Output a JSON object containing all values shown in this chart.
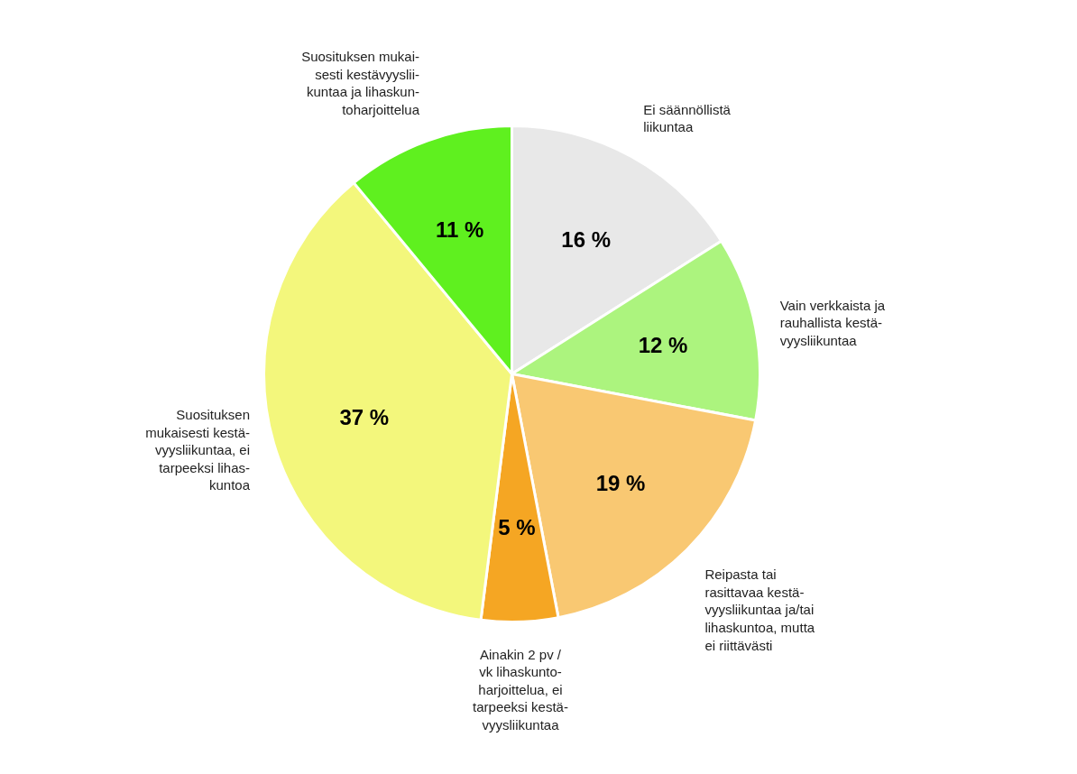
{
  "chart_data": {
    "type": "pie",
    "categories": [
      "Ei säännöllistä\nliikuntaa",
      "Vain verkkaista ja\nrauhallista kestä-\nvyysliikuntaa",
      "Reipasta tai\nrasittavaa kestä-\nvyysliikuntaa ja/tai\nlihaskuntoa, mutta\nei riittävästi",
      "Ainakin 2 pv /\nvk lihaskunto-\nharjoittelua, ei\ntarpeeksi kestä-\nvyysliikuntaa",
      "Suosituksen\nmukaisesti kestä-\nvyysliikuntaa, ei\ntarpeeksi lihas-\nkuntoa",
      "Suosituksen mukai-\nsesti kestävyyslii-\nkuntaa ja lihaskun-\ntoharjoittelua"
    ],
    "values": [
      16,
      12,
      19,
      5,
      37,
      11
    ],
    "value_labels": [
      "16 %",
      "12 %",
      "19 %",
      "5 %",
      "37 %",
      "11 %"
    ],
    "colors": [
      "#e8e8e8",
      "#acf47e",
      "#f9c872",
      "#f5a623",
      "#f3f77c",
      "#5ff01f"
    ]
  }
}
